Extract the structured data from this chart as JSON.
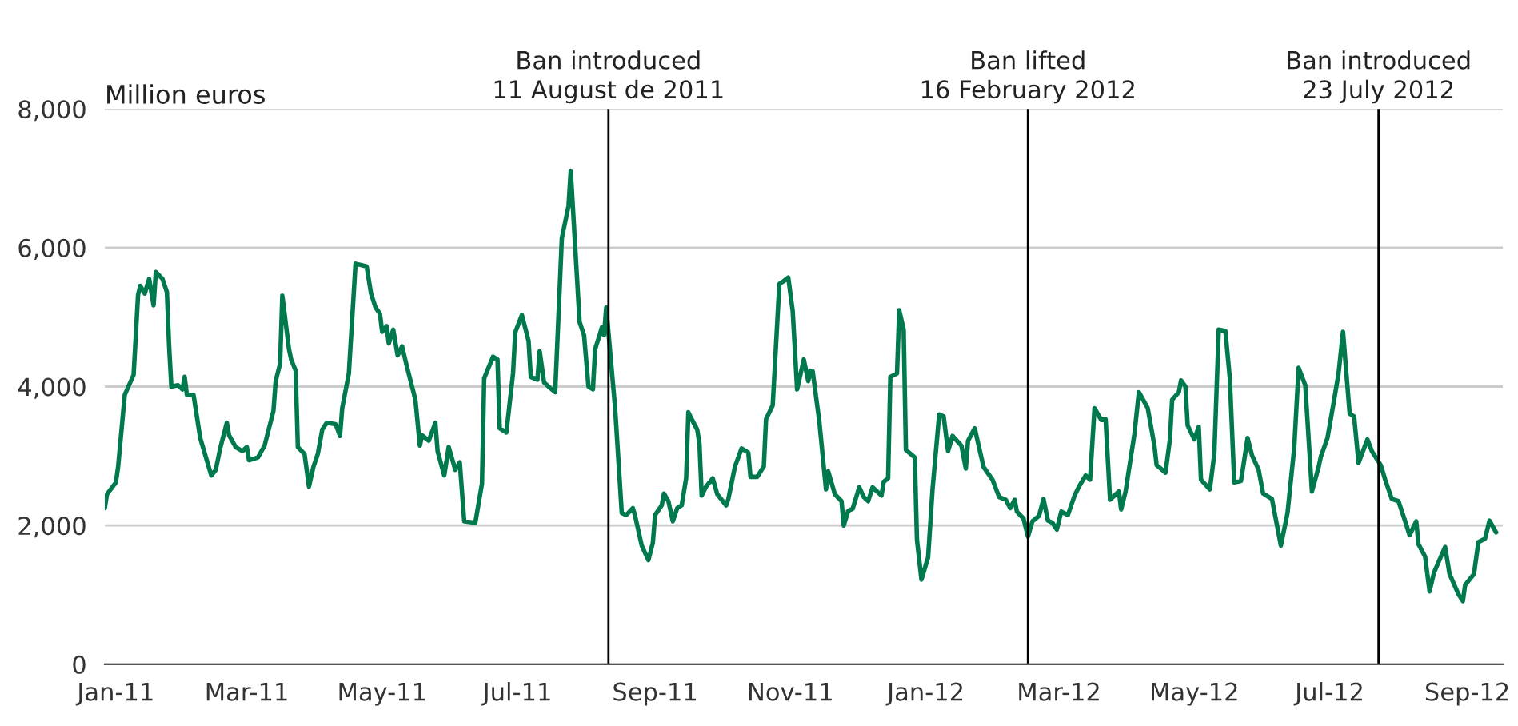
{
  "chart_data": {
    "type": "line",
    "ylabel": "Million euros",
    "x": [
      "2010-12-27",
      "2010-12-28",
      "2011-01-01",
      "2011-01-02",
      "2011-01-05",
      "2011-01-09",
      "2011-01-11",
      "2011-01-12",
      "2011-01-14",
      "2011-01-16",
      "2011-01-18",
      "2011-01-19",
      "2011-01-22",
      "2011-01-24",
      "2011-01-25",
      "2011-01-26",
      "2011-01-29",
      "2011-01-31",
      "2011-02-01",
      "2011-02-02",
      "2011-02-05",
      "2011-02-08",
      "2011-02-13",
      "2011-02-15",
      "2011-02-17",
      "2011-02-20",
      "2011-02-21",
      "2011-02-24",
      "2011-02-27",
      "2011-03-01",
      "2011-03-02",
      "2011-03-06",
      "2011-03-09",
      "2011-03-13",
      "2011-03-14",
      "2011-03-16",
      "2011-03-17",
      "2011-03-20",
      "2011-03-21",
      "2011-03-23",
      "2011-03-24",
      "2011-03-27",
      "2011-03-29",
      "2011-03-31",
      "2011-04-02",
      "2011-04-04",
      "2011-04-06",
      "2011-04-10",
      "2011-04-12",
      "2011-04-13",
      "2011-04-16",
      "2011-04-19",
      "2011-04-24",
      "2011-04-26",
      "2011-04-28",
      "2011-04-30",
      "2011-05-01",
      "2011-05-03",
      "2011-05-04",
      "2011-05-06",
      "2011-05-08",
      "2011-05-10",
      "2011-05-12",
      "2011-05-16",
      "2011-05-18",
      "2011-05-19",
      "2011-05-22",
      "2011-05-25",
      "2011-05-26",
      "2011-05-29",
      "2011-05-31",
      "2011-06-03",
      "2011-06-05",
      "2011-06-07",
      "2011-06-12",
      "2011-06-15",
      "2011-06-16",
      "2011-06-20",
      "2011-06-22",
      "2011-06-23",
      "2011-06-26",
      "2011-06-29",
      "2011-06-30",
      "2011-07-03",
      "2011-07-06",
      "2011-07-07",
      "2011-07-10",
      "2011-07-11",
      "2011-07-13",
      "2011-07-15",
      "2011-07-18",
      "2011-07-21",
      "2011-07-24",
      "2011-07-25",
      "2011-07-29",
      "2011-07-31",
      "2011-08-02",
      "2011-08-04",
      "2011-08-05",
      "2011-08-07",
      "2011-08-08",
      "2011-08-09",
      "2011-08-10",
      "2011-08-14",
      "2011-08-17",
      "2011-08-19",
      "2011-08-22",
      "2011-08-23",
      "2011-08-26",
      "2011-08-29",
      "2011-08-31",
      "2011-09-01",
      "2011-09-04",
      "2011-09-05",
      "2011-09-07",
      "2011-09-09",
      "2011-09-11",
      "2011-09-13",
      "2011-09-15",
      "2011-09-16",
      "2011-09-18",
      "2011-09-20",
      "2011-09-21",
      "2011-09-22",
      "2011-09-24",
      "2011-09-27",
      "2011-09-29",
      "2011-10-03",
      "2011-10-04",
      "2011-10-07",
      "2011-10-10",
      "2011-10-13",
      "2011-10-14",
      "2011-10-17",
      "2011-10-20",
      "2011-10-21",
      "2011-10-24",
      "2011-10-27",
      "2011-10-29",
      "2011-10-31",
      "2011-11-02",
      "2011-11-04",
      "2011-11-07",
      "2011-11-09",
      "2011-11-10",
      "2011-11-11",
      "2011-11-14",
      "2011-11-17",
      "2011-11-18",
      "2011-11-21",
      "2011-11-24",
      "2011-11-25",
      "2011-11-27",
      "2011-11-29",
      "2011-12-02",
      "2011-12-04",
      "2011-12-06",
      "2011-12-08",
      "2011-12-12",
      "2011-12-13",
      "2011-12-15",
      "2011-12-16",
      "2011-12-19",
      "2011-12-20",
      "2011-12-22",
      "2011-12-23",
      "2011-12-27",
      "2011-12-28",
      "2011-12-30",
      "2012-01-02",
      "2012-01-04",
      "2012-01-07",
      "2012-01-09",
      "2012-01-11",
      "2012-01-13",
      "2012-01-17",
      "2012-01-19",
      "2012-01-20",
      "2012-01-23",
      "2012-01-27",
      "2012-01-31",
      "2012-02-03",
      "2012-02-06",
      "2012-02-08",
      "2012-02-10",
      "2012-02-11",
      "2012-02-14",
      "2012-02-16",
      "2012-02-18",
      "2012-02-21",
      "2012-02-23",
      "2012-02-25",
      "2012-02-27",
      "2012-02-29",
      "2012-03-02",
      "2012-03-05",
      "2012-03-08",
      "2012-03-10",
      "2012-03-13",
      "2012-03-15",
      "2012-03-17",
      "2012-03-20",
      "2012-03-22",
      "2012-03-24",
      "2012-03-28",
      "2012-03-29",
      "2012-03-31",
      "2012-04-04",
      "2012-04-06",
      "2012-04-10",
      "2012-04-13",
      "2012-04-14",
      "2012-04-18",
      "2012-04-20",
      "2012-04-21",
      "2012-04-24",
      "2012-04-25",
      "2012-04-27",
      "2012-04-28",
      "2012-05-01",
      "2012-05-03",
      "2012-05-04",
      "2012-05-08",
      "2012-05-10",
      "2012-05-12",
      "2012-05-15",
      "2012-05-17",
      "2012-05-19",
      "2012-05-22",
      "2012-05-23",
      "2012-05-25",
      "2012-05-27",
      "2012-05-30",
      "2012-06-01",
      "2012-06-05",
      "2012-06-09",
      "2012-06-12",
      "2012-06-15",
      "2012-06-17",
      "2012-06-20",
      "2012-06-23",
      "2012-06-26",
      "2012-06-27",
      "2012-06-30",
      "2012-07-03",
      "2012-07-05",
      "2012-07-07",
      "2012-07-10",
      "2012-07-12",
      "2012-07-14",
      "2012-07-18",
      "2012-07-20",
      "2012-07-24",
      "2012-07-26",
      "2012-07-29",
      "2012-08-01",
      "2012-08-04",
      "2012-08-06",
      "2012-08-09",
      "2012-08-10",
      "2012-08-13",
      "2012-08-15",
      "2012-08-17",
      "2012-08-22",
      "2012-08-24",
      "2012-08-28",
      "2012-08-30",
      "2012-08-31",
      "2012-09-04",
      "2012-09-06",
      "2012-09-09",
      "2012-09-11",
      "2012-09-14"
    ],
    "series": [
      {
        "color": "#007a4d",
        "values": [
          2250,
          2450,
          2620,
          2840,
          3880,
          4170,
          5320,
          5450,
          5340,
          5550,
          5170,
          5650,
          5550,
          5360,
          4580,
          4000,
          4020,
          3960,
          4140,
          3880,
          3880,
          3260,
          2720,
          2800,
          3110,
          3480,
          3300,
          3130,
          3070,
          3130,
          2940,
          2980,
          3150,
          3650,
          4080,
          4330,
          5310,
          4540,
          4390,
          4230,
          3130,
          3030,
          2560,
          2840,
          3030,
          3380,
          3480,
          3460,
          3290,
          3690,
          4190,
          5770,
          5730,
          5340,
          5140,
          5050,
          4790,
          4870,
          4620,
          4820,
          4450,
          4580,
          4310,
          3810,
          3150,
          3300,
          3220,
          3480,
          3070,
          2720,
          3130,
          2800,
          2910,
          2060,
          2040,
          2600,
          4120,
          4430,
          4390,
          3400,
          3340,
          4190,
          4780,
          5030,
          4660,
          4140,
          4100,
          4510,
          4060,
          4000,
          3920,
          6140,
          6600,
          7110,
          4930,
          4740,
          4000,
          3960,
          4540,
          4740,
          4850,
          4740,
          5140,
          3690,
          2180,
          2150,
          2250,
          2140,
          1710,
          1500,
          1750,
          2150,
          2290,
          2460,
          2350,
          2060,
          2250,
          2290,
          2680,
          3630,
          3500,
          3380,
          3180,
          2430,
          2560,
          2680,
          2450,
          2290,
          2380,
          2850,
          3110,
          3050,
          2700,
          2700,
          2850,
          3530,
          3730,
          5480,
          5520,
          5570,
          5090,
          3960,
          4390,
          4080,
          4230,
          4220,
          3500,
          2520,
          2780,
          2450,
          2350,
          2000,
          2210,
          2240,
          2550,
          2410,
          2350,
          2550,
          2430,
          2630,
          2680,
          4140,
          4190,
          5100,
          4820,
          3090,
          2980,
          1790,
          1220,
          1540,
          2520,
          3600,
          3570,
          3070,
          3290,
          3150,
          2820,
          3220,
          3400,
          2840,
          2660,
          2410,
          2370,
          2250,
          2370,
          2200,
          2100,
          1840,
          2060,
          2140,
          2380,
          2070,
          2040,
          1940,
          2200,
          2150,
          2430,
          2560,
          2720,
          2660,
          3690,
          3520,
          3530,
          2370,
          2490,
          2230,
          2490,
          3320,
          3920,
          3690,
          3150,
          2870,
          2760,
          3240,
          3810,
          3920,
          4090,
          4000,
          3440,
          3240,
          3420,
          2660,
          2520,
          3030,
          4820,
          4800,
          4120,
          2620,
          2640,
          2840,
          3260,
          3010,
          2800,
          2460,
          2380,
          1710,
          2180,
          3110,
          4270,
          4020,
          2490,
          2840,
          2990,
          3260,
          3810,
          4190,
          4790,
          3610,
          3570,
          2900,
          3240,
          3070,
          2870,
          2660,
          2380,
          2350,
          2060,
          1860,
          2060,
          1730,
          1550,
          1050,
          1320,
          1690,
          1300,
          1010,
          910,
          1140,
          1300,
          1760,
          1810,
          2070,
          1900
        ]
      }
    ],
    "xlim": [
      "2010-12-27",
      "2012-09-17"
    ],
    "xticks": [
      {
        "value": "2011-01-01",
        "label": "Jan-11"
      },
      {
        "value": "2011-03-01",
        "label": "Mar-11"
      },
      {
        "value": "2011-05-01",
        "label": "May-11"
      },
      {
        "value": "2011-07-01",
        "label": "Jul-11"
      },
      {
        "value": "2011-09-01",
        "label": "Sep-11"
      },
      {
        "value": "2011-11-01",
        "label": "Nov-11"
      },
      {
        "value": "2012-01-01",
        "label": "Jan-12"
      },
      {
        "value": "2012-03-01",
        "label": "Mar-12"
      },
      {
        "value": "2012-05-01",
        "label": "May-12"
      },
      {
        "value": "2012-07-01",
        "label": "Jul-12"
      },
      {
        "value": "2012-09-01",
        "label": "Sep-12"
      }
    ],
    "ylim": [
      0,
      8000
    ],
    "yticks": [
      {
        "value": 0,
        "label": "0"
      },
      {
        "value": 2000,
        "label": "2,000"
      },
      {
        "value": 4000,
        "label": "4,000"
      },
      {
        "value": 6000,
        "label": "6,000"
      },
      {
        "value": 8000,
        "label": "8,000"
      }
    ],
    "grid": "y",
    "line_style": "solid",
    "ref_lines": [
      {
        "axis": "x",
        "value": "2011-08-11",
        "label": "Ban introduced\n11 August de 2011",
        "color": "#000000"
      },
      {
        "axis": "x",
        "value": "2012-02-16",
        "label": "Ban lifted\n16 February 2012",
        "color": "#000000"
      },
      {
        "axis": "x",
        "value": "2012-07-23",
        "label": "Ban introduced\n23 July 2012",
        "color": "#000000"
      }
    ]
  }
}
